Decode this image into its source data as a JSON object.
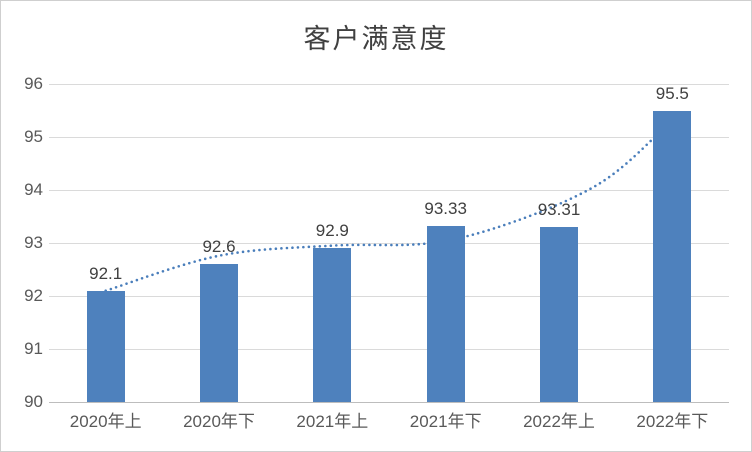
{
  "chart_data": {
    "type": "bar",
    "title": "客户满意度",
    "categories": [
      "2020年上",
      "2020年下",
      "2021年上",
      "2021年下",
      "2022年上",
      "2022年下"
    ],
    "values": [
      92.1,
      92.6,
      92.9,
      93.33,
      93.31,
      95.5
    ],
    "value_labels": [
      "92.1",
      "92.6",
      "92.9",
      "93.33",
      "93.31",
      "95.5"
    ],
    "xlabel": "",
    "ylabel": "",
    "ylim": [
      90,
      96
    ],
    "ytick_labels": [
      "90",
      "91",
      "92",
      "93",
      "94",
      "95",
      "96"
    ],
    "grid": true,
    "legend_position": "none",
    "style": {
      "bar_color": "#4e81bd",
      "trendline_color": "#4a7ebb",
      "gridline_color": "#dadada",
      "axis_line_color": "#bdbdbd",
      "tick_label_color": "#595959",
      "value_label_color": "#404040",
      "title_color": "#404040"
    },
    "trendline": {
      "type": "dotted-curve-behind-bars",
      "points_x_index": [
        0,
        1,
        2,
        2.87,
        3.6,
        4.34,
        4.83,
        5
      ],
      "points_y_value": [
        92.1,
        92.76,
        92.95,
        93.0,
        93.4,
        94.1,
        94.97,
        95.45
      ]
    }
  }
}
